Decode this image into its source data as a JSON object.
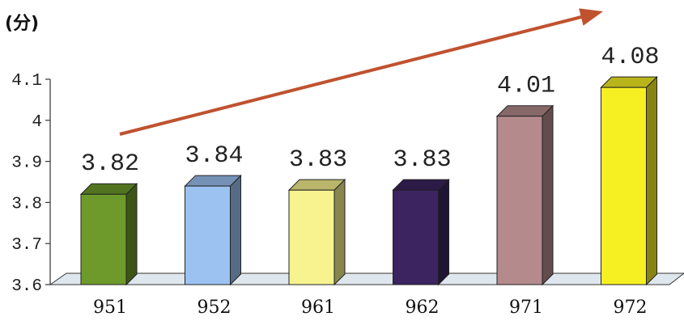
{
  "chart_data": {
    "type": "bar",
    "unit_label": "(分)",
    "categories": [
      "951",
      "952",
      "961",
      "962",
      "971",
      "972"
    ],
    "values": [
      3.82,
      3.84,
      3.83,
      3.83,
      4.01,
      4.08
    ],
    "value_labels": [
      "3.82",
      "3.84",
      "3.83",
      "3.83",
      "4.01",
      "4.08"
    ],
    "y_ticks": [
      3.6,
      3.7,
      3.8,
      3.9,
      4.0,
      4.1
    ],
    "y_tick_labels": [
      "3.6",
      "3.7",
      "3.8",
      "3.9",
      "4",
      "4.1"
    ],
    "ylim": [
      3.6,
      4.1
    ],
    "grid": false,
    "trend_arrow": true,
    "colors": {
      "bar_fronts": [
        "#6d9a2a",
        "#9cc2f2",
        "#f7f38e",
        "#3b2460",
        "#b48a8c",
        "#f6f022"
      ],
      "arrow": "#c0522f",
      "floor": "#dfe7ee"
    }
  }
}
